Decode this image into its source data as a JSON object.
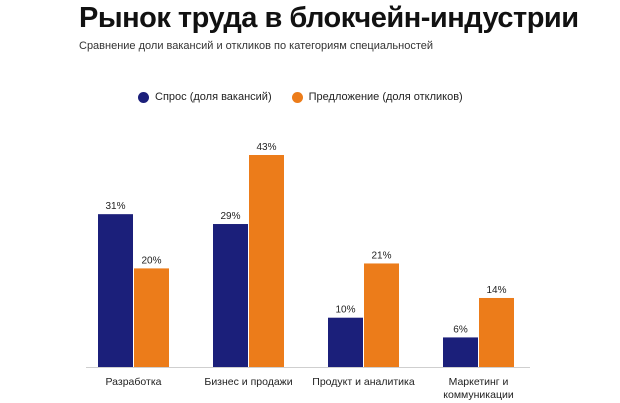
{
  "title": "Рынок труда в блокчейн-индустрии",
  "subtitle": "Сравнение доли вакансий и откликов по категориям специальностей",
  "colors": {
    "demand": "#1b1f7a",
    "supply": "#ec7c1a",
    "axis": "#cfcfcf"
  },
  "chart_data": {
    "type": "bar",
    "title": "Рынок труда в блокчейн-индустрии",
    "subtitle": "Сравнение доли вакансий и откликов по категориям специальностей",
    "categories": [
      [
        "Разработка"
      ],
      [
        "Бизнес и продажи"
      ],
      [
        "Продукт и аналитика"
      ],
      [
        "Маркетинг и",
        "коммуникации"
      ]
    ],
    "series": [
      {
        "name": "Спрос (доля вакансий)",
        "values": [
          31,
          29,
          10,
          6
        ],
        "labels": [
          "31%",
          "29%",
          "10%",
          "6%"
        ]
      },
      {
        "name": "Предложение (доля откликов)",
        "values": [
          20,
          43,
          21,
          14
        ],
        "labels": [
          "20%",
          "43%",
          "21%",
          "14%"
        ]
      }
    ],
    "unit": "%",
    "ylim": [
      0,
      43
    ],
    "legend": "top-left",
    "grid": false
  }
}
